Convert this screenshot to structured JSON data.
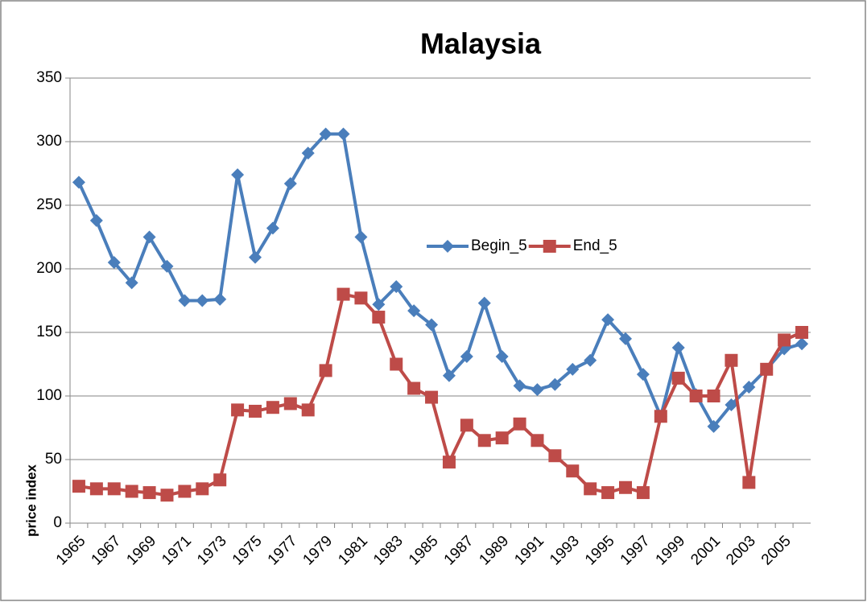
{
  "chart_data": {
    "type": "line",
    "title": "Malaysia",
    "y_label": "price index",
    "categories": [
      "1965",
      null,
      "1967",
      null,
      "1969",
      null,
      "1971",
      null,
      "1973",
      null,
      "1975",
      null,
      "1977",
      null,
      "1979",
      null,
      "1981",
      null,
      "1983",
      null,
      "1985",
      null,
      "1987",
      null,
      "1989",
      null,
      "1991",
      null,
      "1993",
      null,
      "1995",
      null,
      "1997",
      null,
      "1999",
      null,
      "2001",
      null,
      "2003",
      null,
      "2005",
      null
    ],
    "series": [
      {
        "name": "Begin_5",
        "color": "#4a7ebb",
        "marker": "diamond",
        "values": [
          268,
          238,
          205,
          189,
          225,
          202,
          175,
          175,
          176,
          274,
          209,
          232,
          267,
          291,
          306,
          306,
          225,
          172,
          186,
          167,
          156,
          116,
          131,
          173,
          131,
          108,
          105,
          109,
          121,
          128,
          160,
          145,
          117,
          84,
          138,
          101,
          76,
          93,
          107,
          121,
          137,
          141
        ]
      },
      {
        "name": "End_5",
        "color": "#be4b48",
        "marker": "square",
        "values": [
          29,
          27,
          27,
          25,
          24,
          22,
          25,
          27,
          34,
          89,
          88,
          91,
          94,
          89,
          120,
          180,
          177,
          162,
          125,
          106,
          99,
          48,
          77,
          65,
          67,
          78,
          65,
          53,
          41,
          27,
          24,
          28,
          24,
          84,
          114,
          100,
          100,
          128,
          32,
          121,
          144,
          150
        ]
      }
    ],
    "ylim": [
      0,
      350
    ],
    "yticks": [
      0,
      50,
      100,
      150,
      200,
      250,
      300,
      350
    ],
    "grid": true
  }
}
